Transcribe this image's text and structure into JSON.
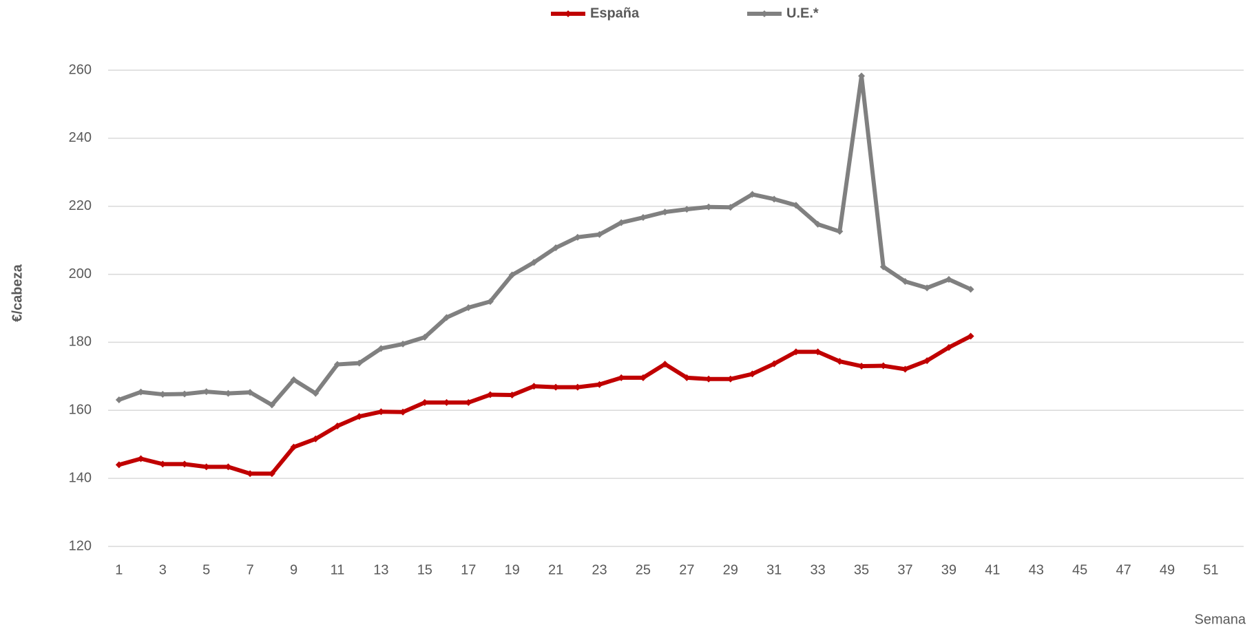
{
  "chart_data": {
    "type": "line",
    "x": [
      1,
      2,
      3,
      4,
      5,
      6,
      7,
      8,
      9,
      10,
      11,
      12,
      13,
      14,
      15,
      16,
      17,
      18,
      19,
      20,
      21,
      22,
      23,
      24,
      25,
      26,
      27,
      28,
      29,
      30,
      31,
      32,
      33,
      34,
      35,
      36,
      37,
      38,
      39,
      40
    ],
    "series": [
      {
        "name": "España",
        "color": "#c00000",
        "values": [
          144,
          145.8,
          144.2,
          144.2,
          143.4,
          143.4,
          141.4,
          141.4,
          149.2,
          151.6,
          155.4,
          158.2,
          159.6,
          159.5,
          162.3,
          162.3,
          162.3,
          164.6,
          164.5,
          167.1,
          166.8,
          166.8,
          167.6,
          169.6,
          169.6,
          173.6,
          169.6,
          169.2,
          169.2,
          170.7,
          173.7,
          177.2,
          177.2,
          174.4,
          173.0,
          173.1,
          172.1,
          174.6,
          178.5,
          181.8
        ]
      },
      {
        "name": "U.E.*",
        "color": "#808080",
        "values": [
          163.1,
          165.4,
          164.7,
          164.8,
          165.5,
          165.0,
          165.3,
          161.6,
          169.0,
          165.0,
          173.5,
          173.9,
          178.2,
          179.5,
          181.5,
          187.3,
          190.2,
          192.0,
          199.8,
          203.5,
          207.8,
          210.9,
          211.7,
          215.2,
          216.7,
          218.3,
          219.1,
          219.8,
          219.7,
          223.5,
          222.1,
          220.3,
          214.7,
          212.6,
          258.3,
          202.2,
          197.9,
          196.0,
          198.5,
          195.6
        ]
      }
    ],
    "y_label": "€/cabeza",
    "x_label": "Semana",
    "xlim": [
      0.5,
      52.5
    ],
    "xticks": [
      1,
      3,
      5,
      7,
      9,
      11,
      13,
      15,
      17,
      19,
      21,
      23,
      25,
      27,
      29,
      31,
      33,
      35,
      37,
      39,
      41,
      43,
      45,
      47,
      49,
      51
    ],
    "ylim": [
      120,
      260
    ],
    "yticks": [
      120,
      140,
      160,
      180,
      200,
      220,
      240,
      260
    ],
    "grid": true,
    "legend": "top"
  }
}
